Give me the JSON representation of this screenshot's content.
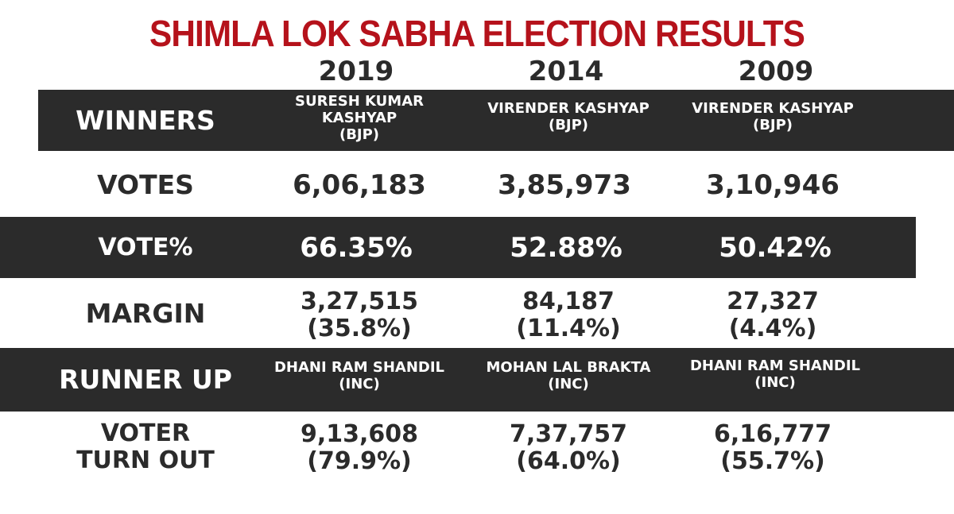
{
  "title": "SHIMLA LOK SABHA ELECTION RESULTS",
  "chart_data": {
    "type": "table",
    "title": "SHIMLA LOK SABHA ELECTION RESULTS",
    "columns": [
      "2019",
      "2014",
      "2009"
    ],
    "rows": [
      {
        "label": "WINNERS",
        "cells": [
          {
            "line1": "SURESH KUMAR",
            "line2": "KASHYAP",
            "line3": "(BJP)"
          },
          {
            "line1": "VIRENDER KASHYAP",
            "line2": "(BJP)"
          },
          {
            "line1": "VIRENDER KASHYAP",
            "line2": "(BJP)"
          }
        ]
      },
      {
        "label": "VOTES",
        "cells": [
          "6,06,183",
          "3,85,973",
          "3,10,946"
        ]
      },
      {
        "label": "VOTE%",
        "cells": [
          "66.35%",
          "52.88%",
          "50.42%"
        ]
      },
      {
        "label": "MARGIN",
        "cells": [
          {
            "line1": "3,27,515",
            "line2": "(35.8%)"
          },
          {
            "line1": "84,187",
            "line2": "(11.4%)"
          },
          {
            "line1": "27,327",
            "line2": "(4.4%)"
          }
        ]
      },
      {
        "label": "RUNNER UP",
        "cells": [
          {
            "line1": "DHANI RAM SHANDIL",
            "line2": "(INC)"
          },
          {
            "line1": "MOHAN LAL BRAKTA",
            "line2": "(INC)"
          },
          {
            "line1": "DHANI RAM SHANDIL",
            "line2": "(INC)"
          }
        ]
      },
      {
        "label_line1": "VOTER",
        "label_line2": "TURN OUT",
        "cells": [
          {
            "line1": "9,13,608",
            "line2": "(79.9%)"
          },
          {
            "line1": "7,37,757",
            "line2": "(64.0%)"
          },
          {
            "line1": "6,16,777",
            "line2": "(55.7%)"
          }
        ]
      }
    ]
  }
}
